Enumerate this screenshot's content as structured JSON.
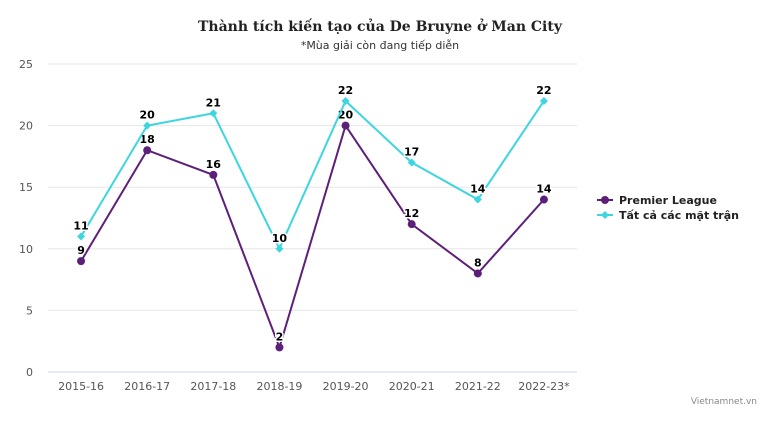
{
  "chart_data": {
    "type": "line",
    "title": "Thành tích kiến tạo của De Bruyne ở Man City",
    "subtitle": "*Mùa giải còn đang tiếp diễn",
    "categories": [
      "2015-16",
      "2016-17",
      "2017-18",
      "2018-19",
      "2019-20",
      "2020-21",
      "2021-22",
      "2022-23*"
    ],
    "ylim": [
      0,
      25
    ],
    "yticks": [
      0,
      5,
      10,
      15,
      20,
      25
    ],
    "grid": true,
    "legend_position": "right",
    "series": [
      {
        "name": "Premier League",
        "color": "#5c1f7a",
        "marker": "circle",
        "values": [
          9,
          18,
          16,
          2,
          20,
          12,
          8,
          14
        ]
      },
      {
        "name": "Tất cả các mặt trận",
        "color": "#3dd6e0",
        "marker": "diamond",
        "values": [
          11,
          20,
          21,
          10,
          22,
          17,
          14,
          22
        ]
      }
    ],
    "credit": "Vietnamnet.vn"
  }
}
